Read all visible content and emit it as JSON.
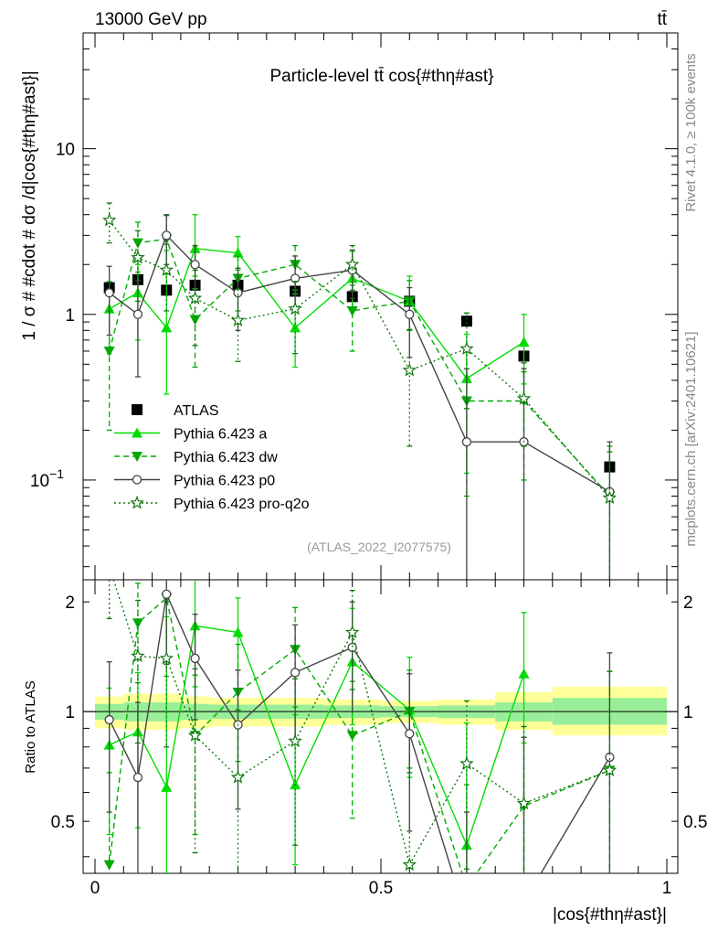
{
  "header": {
    "energy": "13000 GeV pp",
    "process": "tt̄"
  },
  "side_labels": {
    "rivet": "Rivet 4.1.0, ≥ 100k events",
    "source": "mcplots.cern.ch [arXiv:2401.10621]"
  },
  "colors": {
    "data": "#000000",
    "a": "#00dd00",
    "dw": "#00aa00",
    "p0": "#444444",
    "proq2o": "#117711",
    "band_outer": "#ffff99",
    "band_inner": "#99ee99"
  },
  "chart_data": [
    {
      "type": "line",
      "panel": "main",
      "title": "Particle-level tt̄ cos{#thη#ast}",
      "ylabel": "1 / σ # #cdot # dσ /d|cos{#thη#ast}|",
      "yscale": "log",
      "xlim": [
        0,
        1
      ],
      "ylim": [
        0.025,
        50
      ],
      "yticks": [
        {
          "v": 0.1,
          "base": "10",
          "exp": "−1"
        },
        {
          "v": 1,
          "base": "1",
          "exp": ""
        },
        {
          "v": 10,
          "base": "10",
          "exp": ""
        }
      ],
      "annotation": "(ATLAS_2022_I2077575)",
      "legend_position": "center-left",
      "x": [
        0.025,
        0.075,
        0.125,
        0.175,
        0.25,
        0.35,
        0.45,
        0.55,
        0.65,
        0.75,
        0.9
      ],
      "series": [
        {
          "name": "ATLAS",
          "key": "data",
          "style": "data",
          "values": [
            1.45,
            1.62,
            1.4,
            1.5,
            1.5,
            1.38,
            1.28,
            1.2,
            0.91,
            0.56,
            0.12
          ]
        },
        {
          "name": "Pythia 6.423 a",
          "key": "a",
          "style": "solid",
          "marker": "triangle-up",
          "values": [
            1.08,
            1.35,
            0.83,
            2.5,
            2.35,
            0.83,
            1.65,
            1.2,
            0.41,
            0.68,
            null
          ],
          "err_up": [
            0.5,
            0.65,
            1.6,
            1.5,
            0.6,
            0.5,
            0.75,
            0.5,
            0.35,
            0.32,
            null
          ],
          "err_dn": [
            0.5,
            0.65,
            0.5,
            0.8,
            0.5,
            0.35,
            0.55,
            0.4,
            0.3,
            0.3,
            null
          ]
        },
        {
          "name": "Pythia 6.423 dw",
          "key": "dw",
          "style": "dashed",
          "marker": "triangle-down",
          "values": [
            0.6,
            2.7,
            2.85,
            0.93,
            1.65,
            2.0,
            1.05,
            1.2,
            0.3,
            0.3,
            0.08
          ],
          "err_up": [
            0.45,
            0.9,
            1.1,
            0.5,
            0.6,
            0.6,
            0.45,
            0.4,
            0.3,
            0.15,
            0.08
          ],
          "err_dn": [
            0.4,
            0.9,
            1.1,
            0.45,
            0.6,
            0.6,
            0.45,
            0.4,
            0.22,
            0.2,
            0.06
          ]
        },
        {
          "name": "Pythia 6.423 p0",
          "key": "p0",
          "style": "solid",
          "marker": "circle-open",
          "values": [
            1.35,
            1.0,
            3.0,
            2.0,
            1.35,
            1.65,
            1.85,
            1.0,
            0.17,
            0.17,
            0.085
          ],
          "err_up": [
            0.6,
            0.6,
            1.0,
            0.6,
            0.55,
            0.6,
            0.6,
            0.45,
            0.3,
            0.3,
            0.085
          ],
          "err_dn": [
            0.6,
            0.58,
            1.0,
            0.6,
            0.55,
            0.6,
            0.6,
            0.45,
            0.17,
            0.17,
            0.08
          ]
        },
        {
          "name": "Pythia 6.423 pro-q2o",
          "key": "proq2o",
          "style": "dotted",
          "marker": "star-open",
          "values": [
            3.7,
            2.2,
            1.85,
            1.25,
            0.92,
            1.08,
            2.0,
            0.46,
            0.62,
            0.31,
            0.078
          ],
          "err_up": [
            1.0,
            1.0,
            0.8,
            0.6,
            0.5,
            0.5,
            0.6,
            0.35,
            0.4,
            0.2,
            0.07
          ],
          "err_dn": [
            1.0,
            1.0,
            0.8,
            0.6,
            0.4,
            0.5,
            0.6,
            0.3,
            0.35,
            0.15,
            0.06
          ]
        }
      ]
    },
    {
      "type": "line",
      "panel": "ratio",
      "ylabel": "Ratio to ATLAS",
      "xlabel": "|cos{#thη#ast}|",
      "yscale": "log",
      "xlim": [
        0,
        1
      ],
      "ylim": [
        0.36,
        2.3
      ],
      "yticks": [
        {
          "v": 0.5,
          "label": "0.5"
        },
        {
          "v": 1,
          "label": "1"
        },
        {
          "v": 2,
          "label": "2"
        }
      ],
      "xticks": [
        {
          "v": 0,
          "label": "0"
        },
        {
          "v": 0.5,
          "label": "0.5"
        },
        {
          "v": 1,
          "label": "1"
        }
      ],
      "band": {
        "edges": [
          0,
          0.05,
          0.1,
          0.15,
          0.2,
          0.3,
          0.4,
          0.5,
          0.6,
          0.7,
          0.8,
          1.0
        ],
        "outer_lo": [
          0.9,
          0.89,
          0.89,
          0.9,
          0.91,
          0.91,
          0.92,
          0.93,
          0.92,
          0.89,
          0.86
        ],
        "outer_hi": [
          1.1,
          1.12,
          1.12,
          1.1,
          1.09,
          1.09,
          1.08,
          1.07,
          1.08,
          1.13,
          1.17
        ],
        "inner_lo": [
          0.95,
          0.94,
          0.94,
          0.95,
          0.955,
          0.955,
          0.96,
          0.965,
          0.96,
          0.94,
          0.92
        ],
        "inner_hi": [
          1.05,
          1.06,
          1.06,
          1.05,
          1.045,
          1.045,
          1.04,
          1.035,
          1.04,
          1.06,
          1.09
        ]
      },
      "x": [
        0.025,
        0.075,
        0.125,
        0.175,
        0.25,
        0.35,
        0.45,
        0.55,
        0.65,
        0.75,
        0.9
      ],
      "series": [
        {
          "name": "Pythia 6.423 a",
          "key": "a",
          "style": "solid",
          "marker": "triangle-up",
          "values": [
            0.81,
            0.88,
            0.62,
            1.72,
            1.65,
            0.63,
            1.37,
            1.01,
            0.43,
            1.27,
            null
          ],
          "err_up": [
            0.35,
            0.4,
            1.2,
            1.0,
            0.4,
            0.35,
            0.55,
            0.4,
            0.5,
            0.6,
            null
          ],
          "err_dn": [
            0.35,
            0.4,
            0.35,
            0.55,
            0.35,
            0.25,
            0.45,
            0.35,
            0.3,
            0.45,
            null
          ]
        },
        {
          "name": "Pythia 6.423 dw",
          "key": "dw",
          "style": "dashed",
          "marker": "triangle-down",
          "values": [
            0.38,
            1.75,
            2.05,
            0.86,
            1.13,
            1.48,
            0.86,
            1.0,
            0.33,
            0.55,
            0.69
          ],
          "err_up": [
            0.3,
            0.5,
            0.8,
            0.4,
            0.4,
            0.45,
            0.35,
            0.3,
            0.3,
            0.3,
            0.6
          ],
          "err_dn": [
            0.3,
            0.55,
            0.8,
            0.4,
            0.4,
            0.45,
            0.35,
            0.3,
            0.25,
            0.3,
            0.5
          ]
        },
        {
          "name": "Pythia 6.423 p0",
          "key": "p0",
          "style": "solid",
          "marker": "circle-open",
          "values": [
            0.95,
            0.66,
            2.1,
            1.4,
            0.92,
            1.28,
            1.5,
            0.87,
            0.18,
            0.3,
            0.75
          ],
          "err_up": [
            0.42,
            0.4,
            0.75,
            0.45,
            0.38,
            0.45,
            0.5,
            0.4,
            0.35,
            0.55,
            0.7
          ],
          "err_dn": [
            0.42,
            0.4,
            0.75,
            0.45,
            0.38,
            0.45,
            0.5,
            0.4,
            0.18,
            0.3,
            0.65
          ]
        },
        {
          "name": "Pythia 6.423 pro-q2o",
          "key": "proq2o",
          "style": "dotted",
          "marker": "star-open",
          "values": [
            2.5,
            1.42,
            1.4,
            0.86,
            0.66,
            0.83,
            1.65,
            0.38,
            0.72,
            0.56,
            0.69
          ],
          "err_up": [
            0.7,
            0.6,
            0.6,
            0.45,
            0.35,
            0.4,
            0.5,
            0.3,
            0.35,
            0.35,
            0.6
          ],
          "err_dn": [
            0.7,
            0.6,
            0.6,
            0.45,
            0.35,
            0.4,
            0.5,
            0.3,
            0.35,
            0.3,
            0.5
          ]
        }
      ]
    }
  ]
}
